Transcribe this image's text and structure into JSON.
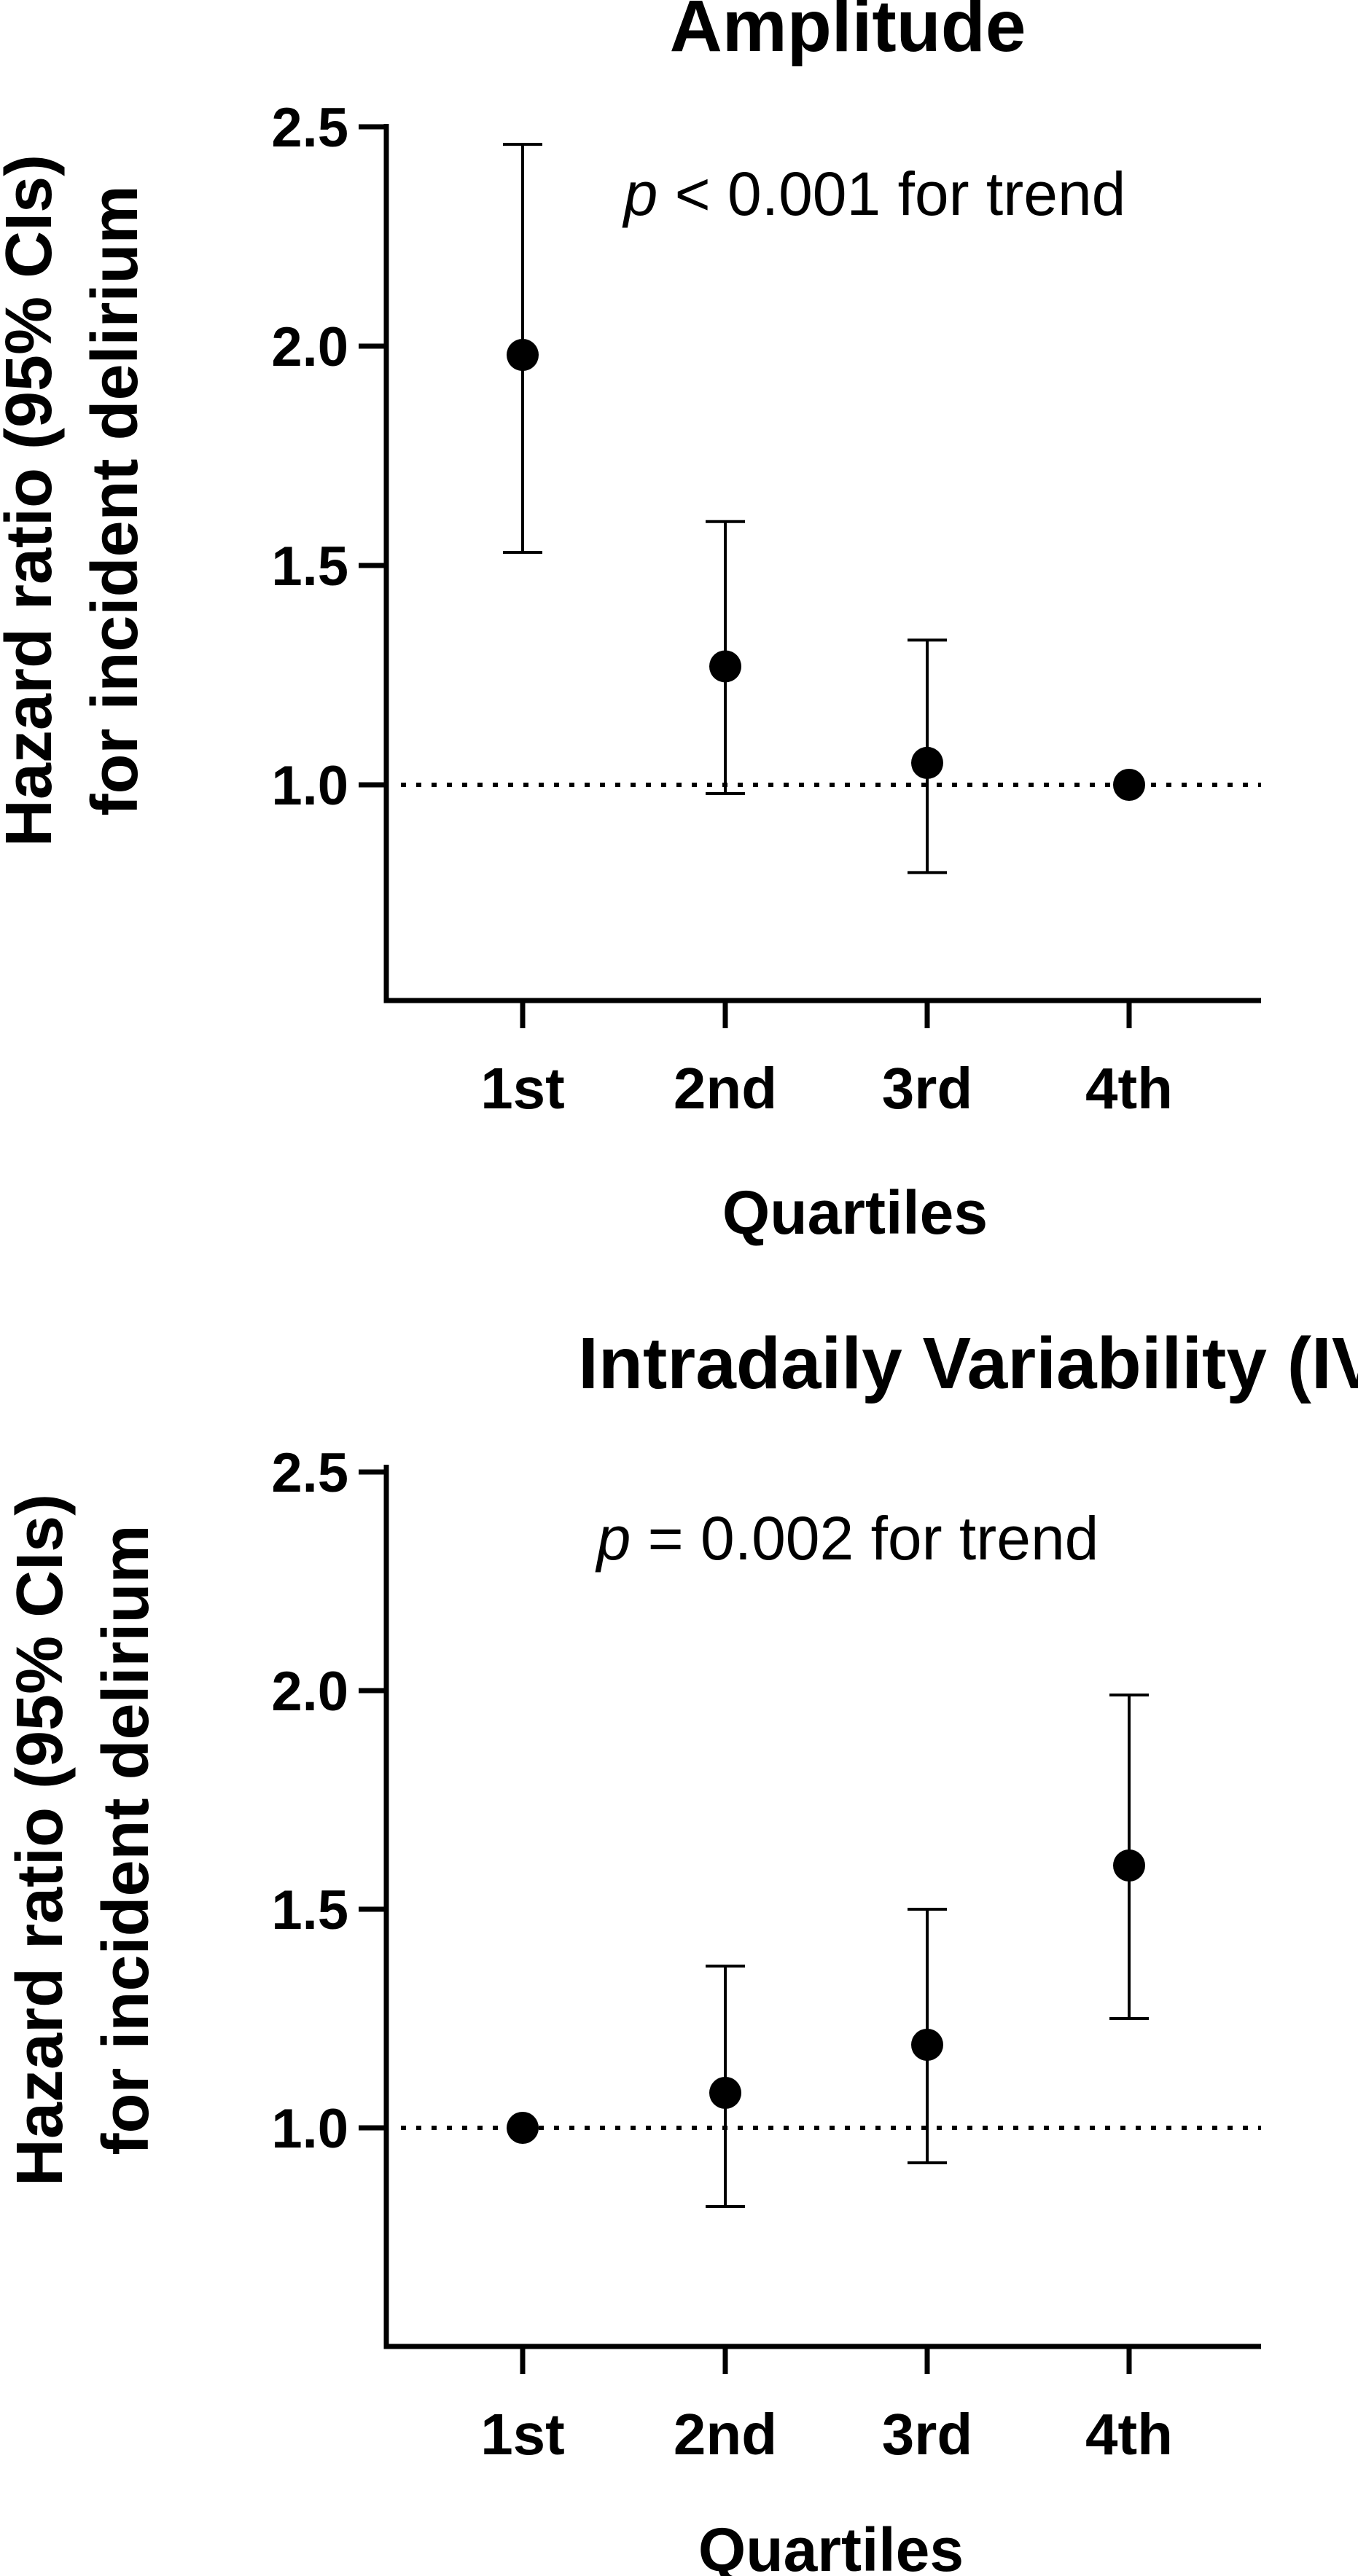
{
  "chart_data": [
    {
      "type": "scatter",
      "title": "Amplitude",
      "xlabel": "Quartiles",
      "ylabel_line1": "Hazard ratio (95% CIs)",
      "ylabel_line2": "for incident delirium",
      "categories": [
        "1st",
        "2nd",
        "3rd",
        "4th"
      ],
      "values": [
        1.98,
        1.27,
        1.05,
        1.0
      ],
      "ci_lower": [
        1.53,
        0.98,
        0.8,
        null
      ],
      "ci_upper": [
        2.46,
        1.6,
        1.33,
        null
      ],
      "ylim": [
        0.5,
        2.5
      ],
      "yticks": [
        1.0,
        1.5,
        2.0,
        2.5
      ],
      "ytick_labels": [
        "1.0",
        "1.5",
        "2.0",
        "2.5"
      ],
      "reference_line": 1.0,
      "annotation_p": "p",
      "annotation_rest": " < 0.001 for trend",
      "grid": false,
      "marker_color": "#000000"
    },
    {
      "type": "scatter",
      "title": "Intradaily Variability (IV)",
      "xlabel": "Quartiles",
      "ylabel_line1": "Hazard ratio (95% CIs)",
      "ylabel_line2": "for incident delirium",
      "categories": [
        "1st",
        "2nd",
        "3rd",
        "4th"
      ],
      "values": [
        1.0,
        1.08,
        1.19,
        1.6
      ],
      "ci_lower": [
        null,
        0.82,
        0.92,
        1.25
      ],
      "ci_upper": [
        null,
        1.37,
        1.5,
        1.99
      ],
      "ylim": [
        0.5,
        2.5
      ],
      "yticks": [
        1.0,
        1.5,
        2.0,
        2.5
      ],
      "ytick_labels": [
        "1.0",
        "1.5",
        "2.0",
        "2.5"
      ],
      "reference_line": 1.0,
      "annotation_p": "p",
      "annotation_rest": " = 0.002 for trend",
      "grid": false,
      "marker_color": "#000000"
    }
  ]
}
